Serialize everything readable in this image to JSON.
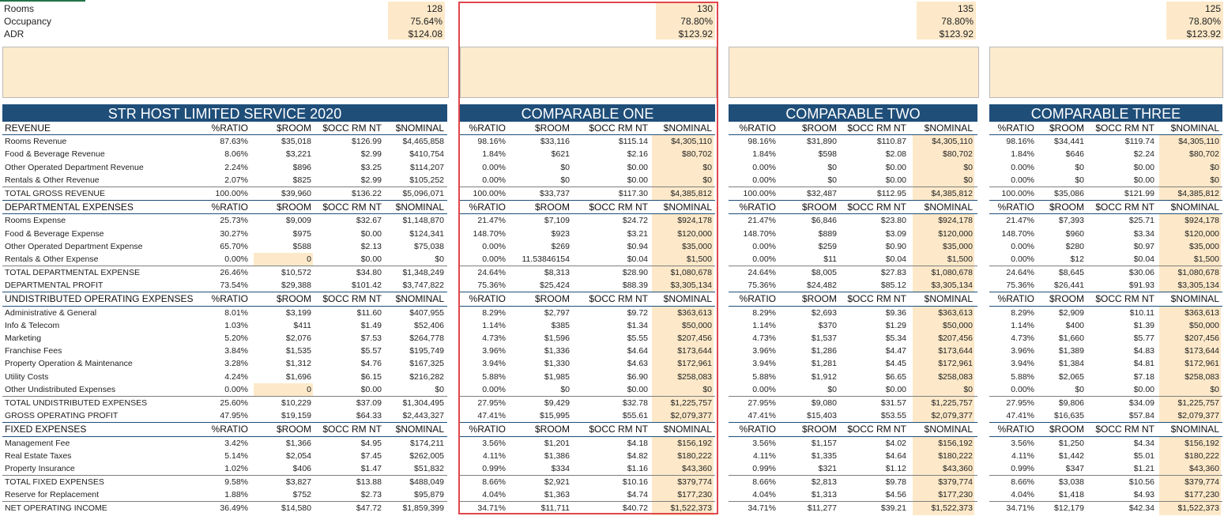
{
  "top_labels": [
    "Rooms",
    "Occupancy",
    "ADR"
  ],
  "top_values": [
    [
      "128",
      "75.64%",
      "$124.08"
    ],
    [
      "130",
      "78.80%",
      "$123.92"
    ],
    [
      "135",
      "78.80%",
      "$123.92"
    ],
    [
      "125",
      "78.80%",
      "$123.92"
    ]
  ],
  "tables": [
    {
      "title": "STR HOST LIMITED SERVICE 2020"
    },
    {
      "title": "COMPARABLE ONE"
    },
    {
      "title": "COMPARABLE TWO"
    },
    {
      "title": "COMPARABLE THREE"
    }
  ],
  "col_headers": [
    "%RATIO",
    "$ROOM",
    "$OCC RM NT",
    "$NOMINAL"
  ],
  "rows": [
    {
      "label": "REVENUE",
      "type": "header",
      "vals": [
        [
          "%RATIO",
          "$ROOM",
          "$OCC RM NT",
          "$NOMINAL"
        ],
        [
          "%RATIO",
          "$ROOM",
          "$OCC RM NT",
          "$NOMINAL"
        ],
        [
          "%RATIO",
          "$ROOM",
          "$OCC RM NT",
          "$NOMINAL"
        ],
        [
          "%RATIO",
          "$ROOM",
          "$OCC RM NT",
          "$NOMINAL"
        ]
      ]
    },
    {
      "label": "Rooms Revenue",
      "type": "data",
      "vals": [
        [
          "87.63%",
          "$35,018",
          "$126.99",
          "$4,465,858"
        ],
        [
          "98.16%",
          "$33,116",
          "$115.14",
          "$4,305,110"
        ],
        [
          "98.16%",
          "$31,890",
          "$110.87",
          "$4,305,110"
        ],
        [
          "98.16%",
          "$34,441",
          "$119.74",
          "$4,305,110"
        ]
      ]
    },
    {
      "label": "Food & Beverage Revenue",
      "type": "data",
      "vals": [
        [
          "8.06%",
          "$3,221",
          "$2.99",
          "$410,754"
        ],
        [
          "1.84%",
          "$621",
          "$2.16",
          "$80,702"
        ],
        [
          "1.84%",
          "$598",
          "$2.08",
          "$80,702"
        ],
        [
          "1.84%",
          "$646",
          "$2.24",
          "$80,702"
        ]
      ]
    },
    {
      "label": "Other Operated Department Revenue",
      "type": "data",
      "vals": [
        [
          "2.24%",
          "$896",
          "$3.25",
          "$114,207"
        ],
        [
          "0.00%",
          "$0",
          "$0.00",
          "$0"
        ],
        [
          "0.00%",
          "$0",
          "$0.00",
          "$0"
        ],
        [
          "0.00%",
          "$0",
          "$0.00",
          "$0"
        ]
      ]
    },
    {
      "label": "Rentals & Other Revenue",
      "type": "data",
      "vals": [
        [
          "2.07%",
          "$825",
          "$2.99",
          "$105,252"
        ],
        [
          "0.00%",
          "$0",
          "$0.00",
          "$0"
        ],
        [
          "0.00%",
          "$0",
          "$0.00",
          "$0"
        ],
        [
          "0.00%",
          "$0",
          "$0.00",
          "$0"
        ]
      ]
    },
    {
      "label": "TOTAL GROSS REVENUE",
      "type": "total",
      "vals": [
        [
          "100.00%",
          "$39,960",
          "$136.22",
          "$5,096,071"
        ],
        [
          "100.00%",
          "$33,737",
          "$117.30",
          "$4,385,812"
        ],
        [
          "100.00%",
          "$32,487",
          "$112.95",
          "$4,385,812"
        ],
        [
          "100.00%",
          "$35,086",
          "$121.99",
          "$4,385,812"
        ]
      ]
    },
    {
      "label": "DEPARTMENTAL EXPENSES",
      "type": "header",
      "vals": [
        [
          "%RATIO",
          "$ROOM",
          "$OCC RM NT",
          "$NOMINAL"
        ],
        [
          "%RATIO",
          "$ROOM",
          "$OCC RM NT",
          "$NOMINAL"
        ],
        [
          "%RATIO",
          "$ROOM",
          "$OCC RM NT",
          "$NOMINAL"
        ],
        [
          "%RATIO",
          "$ROOM",
          "$OCC RM NT",
          "$NOMINAL"
        ]
      ]
    },
    {
      "label": "Rooms Expense",
      "type": "data",
      "vals": [
        [
          "25.73%",
          "$9,009",
          "$32.67",
          "$1,148,870"
        ],
        [
          "21.47%",
          "$7,109",
          "$24.72",
          "$924,178"
        ],
        [
          "21.47%",
          "$6,846",
          "$23.80",
          "$924,178"
        ],
        [
          "21.47%",
          "$7,393",
          "$25.71",
          "$924,178"
        ]
      ]
    },
    {
      "label": "Food & Beverage Expense",
      "type": "data",
      "vals": [
        [
          "30.27%",
          "$975",
          "$0.00",
          "$124,341"
        ],
        [
          "148.70%",
          "$923",
          "$3.21",
          "$120,000"
        ],
        [
          "148.70%",
          "$889",
          "$3.09",
          "$120,000"
        ],
        [
          "148.70%",
          "$960",
          "$3.34",
          "$120,000"
        ]
      ]
    },
    {
      "label": "Other Operated Department Expense",
      "type": "data",
      "vals": [
        [
          "65.70%",
          "$588",
          "$2.13",
          "$75,038"
        ],
        [
          "0.00%",
          "$269",
          "$0.94",
          "$35,000"
        ],
        [
          "0.00%",
          "$259",
          "$0.90",
          "$35,000"
        ],
        [
          "0.00%",
          "$280",
          "$0.97",
          "$35,000"
        ]
      ]
    },
    {
      "label": "Rentals & Other Expense",
      "type": "data",
      "hl0": true,
      "vals": [
        [
          "0.00%",
          "0",
          "$0.00",
          "$0"
        ],
        [
          "0.00%",
          "11.53846154",
          "$0.04",
          "$1,500"
        ],
        [
          "0.00%",
          "$11",
          "$0.04",
          "$1,500"
        ],
        [
          "0.00%",
          "$12",
          "$0.04",
          "$1,500"
        ]
      ]
    },
    {
      "label": "TOTAL DEPARTMENTAL EXPENSE",
      "type": "total",
      "vals": [
        [
          "26.46%",
          "$10,572",
          "$34.80",
          "$1,348,249"
        ],
        [
          "24.64%",
          "$8,313",
          "$28.90",
          "$1,080,678"
        ],
        [
          "24.64%",
          "$8,005",
          "$27.83",
          "$1,080,678"
        ],
        [
          "24.64%",
          "$8,645",
          "$30.06",
          "$1,080,678"
        ]
      ]
    },
    {
      "label": "DEPARTMENTAL PROFIT",
      "type": "plain",
      "vals": [
        [
          "73.54%",
          "$29,388",
          "$101.42",
          "$3,747,822"
        ],
        [
          "75.36%",
          "$25,424",
          "$88.39",
          "$3,305,134"
        ],
        [
          "75.36%",
          "$24,482",
          "$85.12",
          "$3,305,134"
        ],
        [
          "75.36%",
          "$26,441",
          "$91.93",
          "$3,305,134"
        ]
      ]
    },
    {
      "label": "UNDISTRIBUTED OPERATING EXPENSES",
      "type": "header",
      "vals": [
        [
          "%RATIO",
          "$ROOM",
          "$OCC RM NT",
          "$NOMINAL"
        ],
        [
          "%RATIO",
          "$ROOM",
          "$OCC RM NT",
          "$NOMINAL"
        ],
        [
          "%RATIO",
          "$ROOM",
          "$OCC RM NT",
          "$NOMINAL"
        ],
        [
          "%RATIO",
          "$ROOM",
          "$OCC RM NT",
          "$NOMINAL"
        ]
      ]
    },
    {
      "label": "Administrative & General",
      "type": "data",
      "vals": [
        [
          "8.01%",
          "$3,199",
          "$11.60",
          "$407,955"
        ],
        [
          "8.29%",
          "$2,797",
          "$9.72",
          "$363,613"
        ],
        [
          "8.29%",
          "$2,693",
          "$9.36",
          "$363,613"
        ],
        [
          "8.29%",
          "$2,909",
          "$10.11",
          "$363,613"
        ]
      ]
    },
    {
      "label": "Info & Telecom",
      "type": "data",
      "vals": [
        [
          "1.03%",
          "$411",
          "$1.49",
          "$52,406"
        ],
        [
          "1.14%",
          "$385",
          "$1.34",
          "$50,000"
        ],
        [
          "1.14%",
          "$370",
          "$1.29",
          "$50,000"
        ],
        [
          "1.14%",
          "$400",
          "$1.39",
          "$50,000"
        ]
      ]
    },
    {
      "label": "Marketing",
      "type": "data",
      "vals": [
        [
          "5.20%",
          "$2,076",
          "$7.53",
          "$264,778"
        ],
        [
          "4.73%",
          "$1,596",
          "$5.55",
          "$207,456"
        ],
        [
          "4.73%",
          "$1,537",
          "$5.34",
          "$207,456"
        ],
        [
          "4.73%",
          "$1,660",
          "$5.77",
          "$207,456"
        ]
      ]
    },
    {
      "label": "Franchise Fees",
      "type": "data",
      "vals": [
        [
          "3.84%",
          "$1,535",
          "$5.57",
          "$195,749"
        ],
        [
          "3.96%",
          "$1,336",
          "$4.64",
          "$173,644"
        ],
        [
          "3.96%",
          "$1,286",
          "$4.47",
          "$173,644"
        ],
        [
          "3.96%",
          "$1,389",
          "$4.83",
          "$173,644"
        ]
      ]
    },
    {
      "label": "Property Operation & Maintenance",
      "type": "data",
      "vals": [
        [
          "3.28%",
          "$1,312",
          "$4.76",
          "$167,325"
        ],
        [
          "3.94%",
          "$1,330",
          "$4.63",
          "$172,961"
        ],
        [
          "3.94%",
          "$1,281",
          "$4.45",
          "$172,961"
        ],
        [
          "3.94%",
          "$1,384",
          "$4.81",
          "$172,961"
        ]
      ]
    },
    {
      "label": "Utility Costs",
      "type": "data",
      "vals": [
        [
          "4.24%",
          "$1,696",
          "$6.15",
          "$216,282"
        ],
        [
          "5.88%",
          "$1,985",
          "$6.90",
          "$258,083"
        ],
        [
          "5.88%",
          "$1,912",
          "$6.65",
          "$258,083"
        ],
        [
          "5.88%",
          "$2,065",
          "$7.18",
          "$258,083"
        ]
      ]
    },
    {
      "label": "Other Undistributed Expenses",
      "type": "data",
      "hl0": true,
      "vals": [
        [
          "0.00%",
          "0",
          "$0.00",
          "$0"
        ],
        [
          "0.00%",
          "$0",
          "$0.00",
          "$0"
        ],
        [
          "0.00%",
          "$0",
          "$0.00",
          "$0"
        ],
        [
          "0.00%",
          "$0",
          "$0.00",
          "$0"
        ]
      ]
    },
    {
      "label": "TOTAL UNDISTRIBUTED EXPENSES",
      "type": "total",
      "vals": [
        [
          "25.60%",
          "$10,229",
          "$37.09",
          "$1,304,495"
        ],
        [
          "27.95%",
          "$9,429",
          "$32.78",
          "$1,225,757"
        ],
        [
          "27.95%",
          "$9,080",
          "$31.57",
          "$1,225,757"
        ],
        [
          "27.95%",
          "$9,806",
          "$34.09",
          "$1,225,757"
        ]
      ]
    },
    {
      "label": "GROSS OPERATING PROFIT",
      "type": "plain",
      "vals": [
        [
          "47.95%",
          "$19,159",
          "$64.33",
          "$2,443,327"
        ],
        [
          "47.41%",
          "$15,995",
          "$55.61",
          "$2,079,377"
        ],
        [
          "47.41%",
          "$15,403",
          "$53.55",
          "$2,079,377"
        ],
        [
          "47.41%",
          "$16,635",
          "$57.84",
          "$2,079,377"
        ]
      ]
    },
    {
      "label": "FIXED EXPENSES",
      "type": "header",
      "vals": [
        [
          "%RATIO",
          "$ROOM",
          "$OCC RM NT",
          "$NOMINAL"
        ],
        [
          "%RATIO",
          "$ROOM",
          "$OCC RM NT",
          "$NOMINAL"
        ],
        [
          "%RATIO",
          "$ROOM",
          "$OCC RM NT",
          "$NOMINAL"
        ],
        [
          "%RATIO",
          "$ROOM",
          "$OCC RM NT",
          "$NOMINAL"
        ]
      ]
    },
    {
      "label": "Management Fee",
      "type": "data",
      "vals": [
        [
          "3.42%",
          "$1,366",
          "$4.95",
          "$174,211"
        ],
        [
          "3.56%",
          "$1,201",
          "$4.18",
          "$156,192"
        ],
        [
          "3.56%",
          "$1,157",
          "$4.02",
          "$156,192"
        ],
        [
          "3.56%",
          "$1,250",
          "$4.34",
          "$156,192"
        ]
      ]
    },
    {
      "label": "Real Estate Taxes",
      "type": "data",
      "vals": [
        [
          "5.14%",
          "$2,054",
          "$7.45",
          "$262,005"
        ],
        [
          "4.11%",
          "$1,386",
          "$4.82",
          "$180,222"
        ],
        [
          "4.11%",
          "$1,335",
          "$4.64",
          "$180,222"
        ],
        [
          "4.11%",
          "$1,442",
          "$5.01",
          "$180,222"
        ]
      ]
    },
    {
      "label": "Property Insurance",
      "type": "data",
      "vals": [
        [
          "1.02%",
          "$406",
          "$1.47",
          "$51,832"
        ],
        [
          "0.99%",
          "$334",
          "$1.16",
          "$43,360"
        ],
        [
          "0.99%",
          "$321",
          "$1.12",
          "$43,360"
        ],
        [
          "0.99%",
          "$347",
          "$1.21",
          "$43,360"
        ]
      ]
    },
    {
      "label": "TOTAL FIXED EXPENSES",
      "type": "total",
      "vals": [
        [
          "9.58%",
          "$3,827",
          "$13.88",
          "$488,049"
        ],
        [
          "8.66%",
          "$2,921",
          "$10.16",
          "$379,774"
        ],
        [
          "8.66%",
          "$2,813",
          "$9.78",
          "$379,774"
        ],
        [
          "8.66%",
          "$3,038",
          "$10.56",
          "$379,774"
        ]
      ]
    },
    {
      "label": "Reserve for Replacement",
      "type": "data",
      "vals": [
        [
          "1.88%",
          "$752",
          "$2.73",
          "$95,879"
        ],
        [
          "4.04%",
          "$1,363",
          "$4.74",
          "$177,230"
        ],
        [
          "4.04%",
          "$1,313",
          "$4.56",
          "$177,230"
        ],
        [
          "4.04%",
          "$1,418",
          "$4.93",
          "$177,230"
        ]
      ]
    },
    {
      "label": "NET OPERATING INCOME",
      "type": "total",
      "vals": [
        [
          "36.49%",
          "$14,580",
          "$47.72",
          "$1,859,399"
        ],
        [
          "34.71%",
          "$11,711",
          "$40.72",
          "$1,522,373"
        ],
        [
          "34.71%",
          "$11,277",
          "$39.21",
          "$1,522,373"
        ],
        [
          "34.71%",
          "$12,179",
          "$42.34",
          "$1,522,373"
        ]
      ]
    }
  ],
  "colors": {
    "title_bg": "#1f4e79",
    "highlight": "#fde9c9",
    "red_border": "#e0474c"
  }
}
